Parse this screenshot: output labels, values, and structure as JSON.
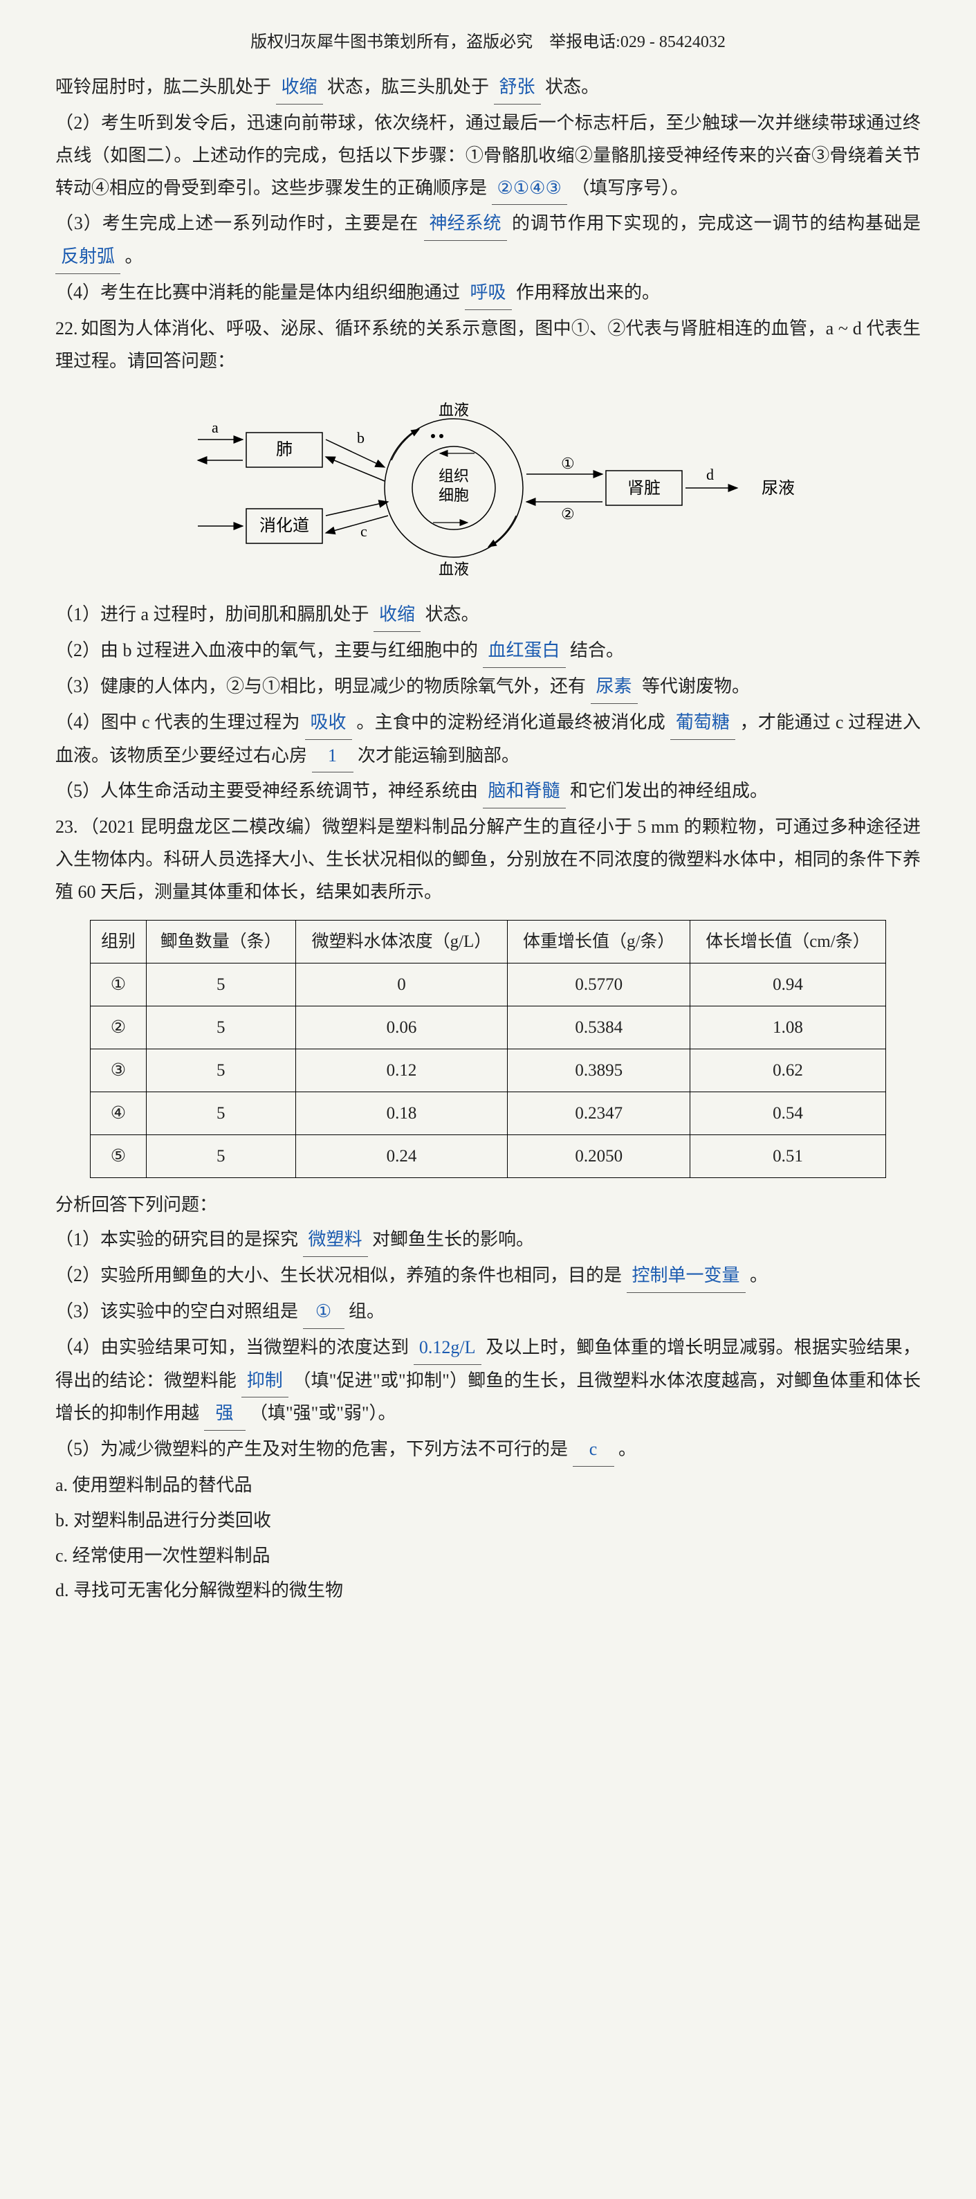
{
  "header": {
    "copyright": "版权归灰犀牛图书策划所有，盗版必究",
    "hotline_label": "举报电话:",
    "hotline": "029 - 85424032"
  },
  "q21": {
    "p1_a": "哑铃屈肘时，肱二头肌处于",
    "blank1": "收缩",
    "p1_b": "状态，肱三头肌处于",
    "blank2": "舒张",
    "p1_c": "状态。",
    "p2": "（2）考生听到发令后，迅速向前带球，依次绕杆，通过最后一个标志杆后，至少触球一次并继续带球通过终点线（如图二）。上述动作的完成，包括以下步骤：①骨骼肌收缩②量骼肌接受神经传来的兴奋③骨绕着关节转动④相应的骨受到牵引。这些步骤发生的正确顺序是",
    "blank3": "②①④③",
    "p2_b": "（填写序号）。",
    "p3_a": "（3）考生完成上述一系列动作时，主要是在",
    "blank4": "神经系统",
    "p3_b": "的调节作用下实现的，完成这一调节的结构基础是",
    "blank5": "反射弧",
    "p3_c": "。",
    "p4_a": "（4）考生在比赛中消耗的能量是体内组织细胞通过",
    "blank6": "呼吸",
    "p4_b": "作用释放出来的。"
  },
  "q22": {
    "num": "22.",
    "intro": "如图为人体消化、呼吸、泌尿、循环系统的关系示意图，图中①、②代表与肾脏相连的血管，a ~ d 代表生理过程。请回答问题：",
    "diagram": {
      "lung": "肺",
      "digest": "消化道",
      "kidney": "肾脏",
      "tissue1": "组织",
      "tissue2": "细胞",
      "blood_top": "血液",
      "blood_bottom": "血液",
      "a": "a",
      "b": "b",
      "c": "c",
      "d": "d",
      "one": "①",
      "two": "②",
      "urine": "尿液"
    },
    "p1_a": "（1）进行 a 过程时，肋间肌和膈肌处于",
    "blank1": "收缩",
    "p1_b": "状态。",
    "p2_a": "（2）由 b 过程进入血液中的氧气，主要与红细胞中的",
    "blank2": "血红蛋白",
    "p2_b": "结合。",
    "p3_a": "（3）健康的人体内，②与①相比，明显减少的物质除氧气外，还有",
    "blank3": "尿素",
    "p3_b": "等代谢废物。",
    "p4_a": "（4）图中 c 代表的生理过程为",
    "blank4": "吸收",
    "p4_b": "。主食中的淀粉经消化道最终被消化成",
    "blank5": "葡萄糖",
    "p4_c": "，才能通过 c 过程进入血液。该物质至少要经过右心房",
    "blank6": "1",
    "p4_d": "次才能运输到脑部。",
    "p5_a": "（5）人体生命活动主要受神经系统调节，神经系统由",
    "blank7": "脑和脊髓",
    "p5_b": "和它们发出的神经组成。"
  },
  "q23": {
    "num": "23.",
    "intro": "（2021 昆明盘龙区二模改编）微塑料是塑料制品分解产生的直径小于 5 mm 的颗粒物，可通过多种途径进入生物体内。科研人员选择大小、生长状况相似的鲫鱼，分别放在不同浓度的微塑料水体中，相同的条件下养殖 60 天后，测量其体重和体长，结果如表所示。",
    "table": {
      "headers": [
        "组别",
        "鲫鱼数量（条）",
        "微塑料水体浓度（g/L）",
        "体重增长值（g/条）",
        "体长增长值（cm/条）"
      ],
      "rows": [
        [
          "①",
          "5",
          "0",
          "0.5770",
          "0.94"
        ],
        [
          "②",
          "5",
          "0.06",
          "0.5384",
          "1.08"
        ],
        [
          "③",
          "5",
          "0.12",
          "0.3895",
          "0.62"
        ],
        [
          "④",
          "5",
          "0.18",
          "0.2347",
          "0.54"
        ],
        [
          "⑤",
          "5",
          "0.24",
          "0.2050",
          "0.51"
        ]
      ]
    },
    "analysis_label": "分析回答下列问题：",
    "p1_a": "（1）本实验的研究目的是探究",
    "blank1": "微塑料",
    "p1_b": "对鲫鱼生长的影响。",
    "p2_a": "（2）实验所用鲫鱼的大小、生长状况相似，养殖的条件也相同，目的是",
    "blank2": "控制单一变量",
    "p2_b": "。",
    "p3_a": "（3）该实验中的空白对照组是",
    "blank3": "①",
    "p3_b": "组。",
    "p4_a": "（4）由实验结果可知，当微塑料的浓度达到",
    "blank4": "0.12g/L",
    "p4_b": "及以上时，鲫鱼体重的增长明显减弱。根据实验结果，得出的结论：微塑料能",
    "blank5": "抑制",
    "p4_c": "（填\"促进\"或\"抑制\"）鲫鱼的生长，且微塑料水体浓度越高，对鲫鱼体重和体长增长的抑制作用越",
    "blank6": "强",
    "p4_d": "（填\"强\"或\"弱\"）。",
    "p5_a": "（5）为减少微塑料的产生及对生物的危害，下列方法不可行的是",
    "blank7": "c",
    "p5_b": "。",
    "opt_a": "a. 使用塑料制品的替代品",
    "opt_b": "b. 对塑料制品进行分类回收",
    "opt_c": "c. 经常使用一次性塑料制品",
    "opt_d": "d. 寻找可无害化分解微塑料的微生物"
  },
  "colors": {
    "text": "#222222",
    "answer": "#1b5bb0",
    "border": "#000000",
    "background": "#f5f5f0"
  }
}
